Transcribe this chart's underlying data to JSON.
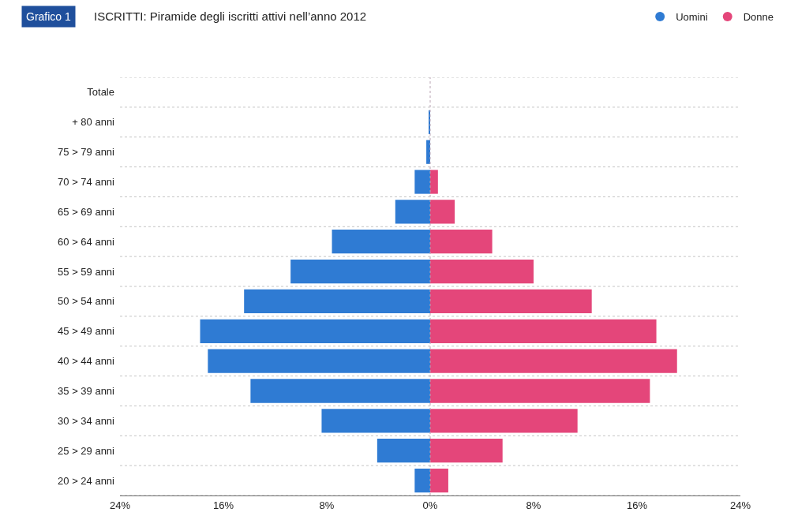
{
  "chart_data": {
    "type": "bar",
    "orientation": "horizontal",
    "stacked": true,
    "title": "ISCRITTI: Piramide degli iscritti attivi nell’anno 2012",
    "annotations": [
      "Grafico 1"
    ],
    "categories": [
      "Totale",
      "+ 80 anni",
      "75 > 79 anni",
      "70 > 74 anni",
      "65 > 69 anni",
      "60 > 64 anni",
      "55 > 59 anni",
      "50 > 54 anni",
      "45 > 49 anni",
      "40 > 44 anni",
      "35 > 39 anni",
      "30 > 34 anni",
      "25 > 29 anni",
      "20 > 24 anni"
    ],
    "series": [
      {
        "name": "Uomini",
        "color": "#2f7bd3",
        "values": [
          null,
          -0.1,
          -0.3,
          -1.2,
          -2.7,
          -7.6,
          -10.8,
          -14.4,
          -17.8,
          -17.2,
          -13.9,
          -8.4,
          -4.1,
          -1.2
        ]
      },
      {
        "name": "Donne",
        "color": "#e4467a",
        "values": [
          null,
          0,
          0,
          0.6,
          1.9,
          4.8,
          8.0,
          12.5,
          17.5,
          19.1,
          17.0,
          11.4,
          5.6,
          1.4
        ]
      }
    ],
    "xlim": [
      -24,
      24
    ],
    "xticks": [
      {
        "value": -24,
        "label": "24%"
      },
      {
        "value": -16,
        "label": "16%"
      },
      {
        "value": -8,
        "label": "8%"
      },
      {
        "value": 0,
        "label": "0%"
      },
      {
        "value": 8,
        "label": "8%"
      },
      {
        "value": 16,
        "label": "16%"
      },
      {
        "value": 24,
        "label": "24%"
      }
    ],
    "ref_lines": [
      {
        "axis": "x",
        "value": 0,
        "color": "#b9a3b3",
        "line_style": "dotted"
      }
    ],
    "grid": "y",
    "legend": "top right"
  }
}
